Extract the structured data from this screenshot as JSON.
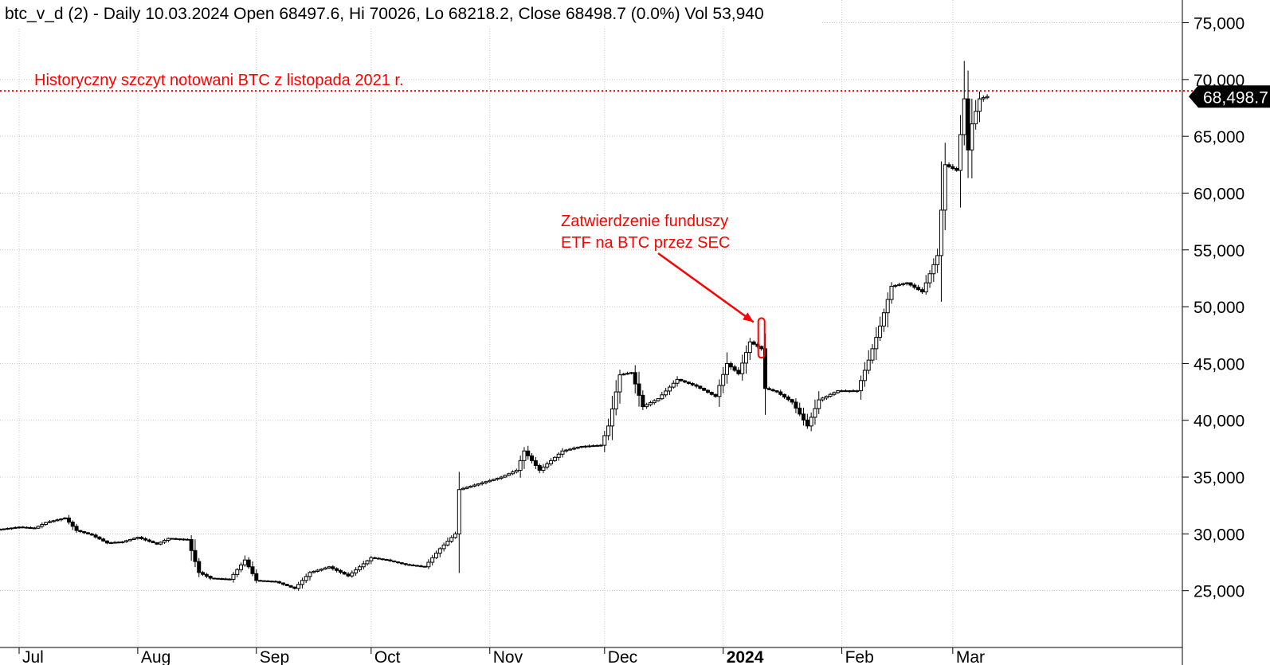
{
  "header": {
    "text": "btc_v_d (2) - Daily 10.03.2024 Open 68497.6, Hi 70026, Lo 68218.2, Close 68498.7 (0.0%) Vol 53,940"
  },
  "annotations": {
    "ath_label": "Historyczny szczyt notowani BTC z listopada 2021 r.",
    "etf_line1": "Zatwierdzenie funduszy",
    "etf_line2": "ETF na BTC przez SEC"
  },
  "price_tag": "68,498.7",
  "colors": {
    "annotation": "#ff0000",
    "candle": "#000000",
    "background": "#ffffff",
    "price_tag_bg": "#000000"
  },
  "chart_data": {
    "type": "candlestick",
    "instrument": "btc_v_d (2)",
    "interval": "Daily",
    "ylim": [
      20000,
      77000
    ],
    "yticks": [
      25000,
      30000,
      35000,
      40000,
      45000,
      50000,
      55000,
      60000,
      65000,
      70000,
      75000
    ],
    "ytick_labels": [
      "25,000",
      "30,000",
      "35,000",
      "40,000",
      "45,000",
      "50,000",
      "55,000",
      "60,000",
      "65,000",
      "70,000",
      "75,000"
    ],
    "xticks": [
      {
        "label": "Jul",
        "date": "2023-07-01",
        "bold": false
      },
      {
        "label": "Aug",
        "date": "2023-08-01",
        "bold": false
      },
      {
        "label": "Sep",
        "date": "2023-09-01",
        "bold": false
      },
      {
        "label": "Oct",
        "date": "2023-10-01",
        "bold": false
      },
      {
        "label": "Nov",
        "date": "2023-11-01",
        "bold": false
      },
      {
        "label": "Dec",
        "date": "2023-12-01",
        "bold": false
      },
      {
        "label": "2024",
        "date": "2024-01-01",
        "bold": true
      },
      {
        "label": "Feb",
        "date": "2024-02-01",
        "bold": false
      },
      {
        "label": "Mar",
        "date": "2024-03-01",
        "bold": false
      }
    ],
    "x_range": [
      "2023-06-26",
      "2024-04-30"
    ],
    "grid": true,
    "reference_line": {
      "value": 69000,
      "style": "dotted",
      "color": "#ff0000",
      "label": "Historyczny szczyt notowani BTC z listopada 2021 r."
    },
    "last_close": 68498.7,
    "etf_highlight": {
      "date": "2024-01-11",
      "low": 45500,
      "high": 49000
    },
    "close_path": [
      [
        "2023-06-26",
        30400
      ],
      [
        "2023-07-01",
        30600
      ],
      [
        "2023-07-05",
        30500
      ],
      [
        "2023-07-08",
        31000
      ],
      [
        "2023-07-13",
        31400
      ],
      [
        "2023-07-16",
        30300
      ],
      [
        "2023-07-20",
        29900
      ],
      [
        "2023-07-24",
        29200
      ],
      [
        "2023-07-28",
        29300
      ],
      [
        "2023-08-01",
        29700
      ],
      [
        "2023-08-06",
        29100
      ],
      [
        "2023-08-09",
        29600
      ],
      [
        "2023-08-14",
        29500
      ],
      [
        "2023-08-17",
        26600
      ],
      [
        "2023-08-20",
        26100
      ],
      [
        "2023-08-25",
        26000
      ],
      [
        "2023-08-29",
        27700
      ],
      [
        "2023-09-01",
        25900
      ],
      [
        "2023-09-06",
        25800
      ],
      [
        "2023-09-11",
        25200
      ],
      [
        "2023-09-15",
        26600
      ],
      [
        "2023-09-20",
        27100
      ],
      [
        "2023-09-25",
        26300
      ],
      [
        "2023-10-01",
        27900
      ],
      [
        "2023-10-05",
        27700
      ],
      [
        "2023-10-10",
        27300
      ],
      [
        "2023-10-15",
        27100
      ],
      [
        "2023-10-19",
        28700
      ],
      [
        "2023-10-23",
        30000
      ],
      [
        "2023-10-24",
        33900
      ],
      [
        "2023-10-30",
        34500
      ],
      [
        "2023-11-04",
        35000
      ],
      [
        "2023-11-08",
        35600
      ],
      [
        "2023-11-10",
        37300
      ],
      [
        "2023-11-14",
        35600
      ],
      [
        "2023-11-20",
        37300
      ],
      [
        "2023-11-25",
        37700
      ],
      [
        "2023-11-30",
        37800
      ],
      [
        "2023-12-02",
        39500
      ],
      [
        "2023-12-05",
        44000
      ],
      [
        "2023-12-08",
        44200
      ],
      [
        "2023-12-11",
        41200
      ],
      [
        "2023-12-15",
        41900
      ],
      [
        "2023-12-20",
        43600
      ],
      [
        "2023-12-25",
        43000
      ],
      [
        "2023-12-30",
        42100
      ],
      [
        "2024-01-02",
        45000
      ],
      [
        "2024-01-05",
        44100
      ],
      [
        "2024-01-08",
        46900
      ],
      [
        "2024-01-11",
        46300
      ],
      [
        "2024-01-12",
        42800
      ],
      [
        "2024-01-15",
        42500
      ],
      [
        "2024-01-19",
        41600
      ],
      [
        "2024-01-23",
        39500
      ],
      [
        "2024-01-26",
        41800
      ],
      [
        "2024-01-31",
        42600
      ],
      [
        "2024-02-05",
        42600
      ],
      [
        "2024-02-08",
        45300
      ],
      [
        "2024-02-11",
        48300
      ],
      [
        "2024-02-14",
        51800
      ],
      [
        "2024-02-18",
        52100
      ],
      [
        "2024-02-22",
        51300
      ],
      [
        "2024-02-26",
        54500
      ],
      [
        "2024-02-28",
        62500
      ],
      [
        "2024-03-02",
        62000
      ],
      [
        "2024-03-04",
        68300
      ],
      [
        "2024-03-05",
        63800
      ],
      [
        "2024-03-06",
        66100
      ],
      [
        "2024-03-08",
        68300
      ],
      [
        "2024-03-10",
        68498.7
      ]
    ],
    "series": [
      {
        "values_description_ref": "close_path",
        "name": ""
      }
    ]
  }
}
